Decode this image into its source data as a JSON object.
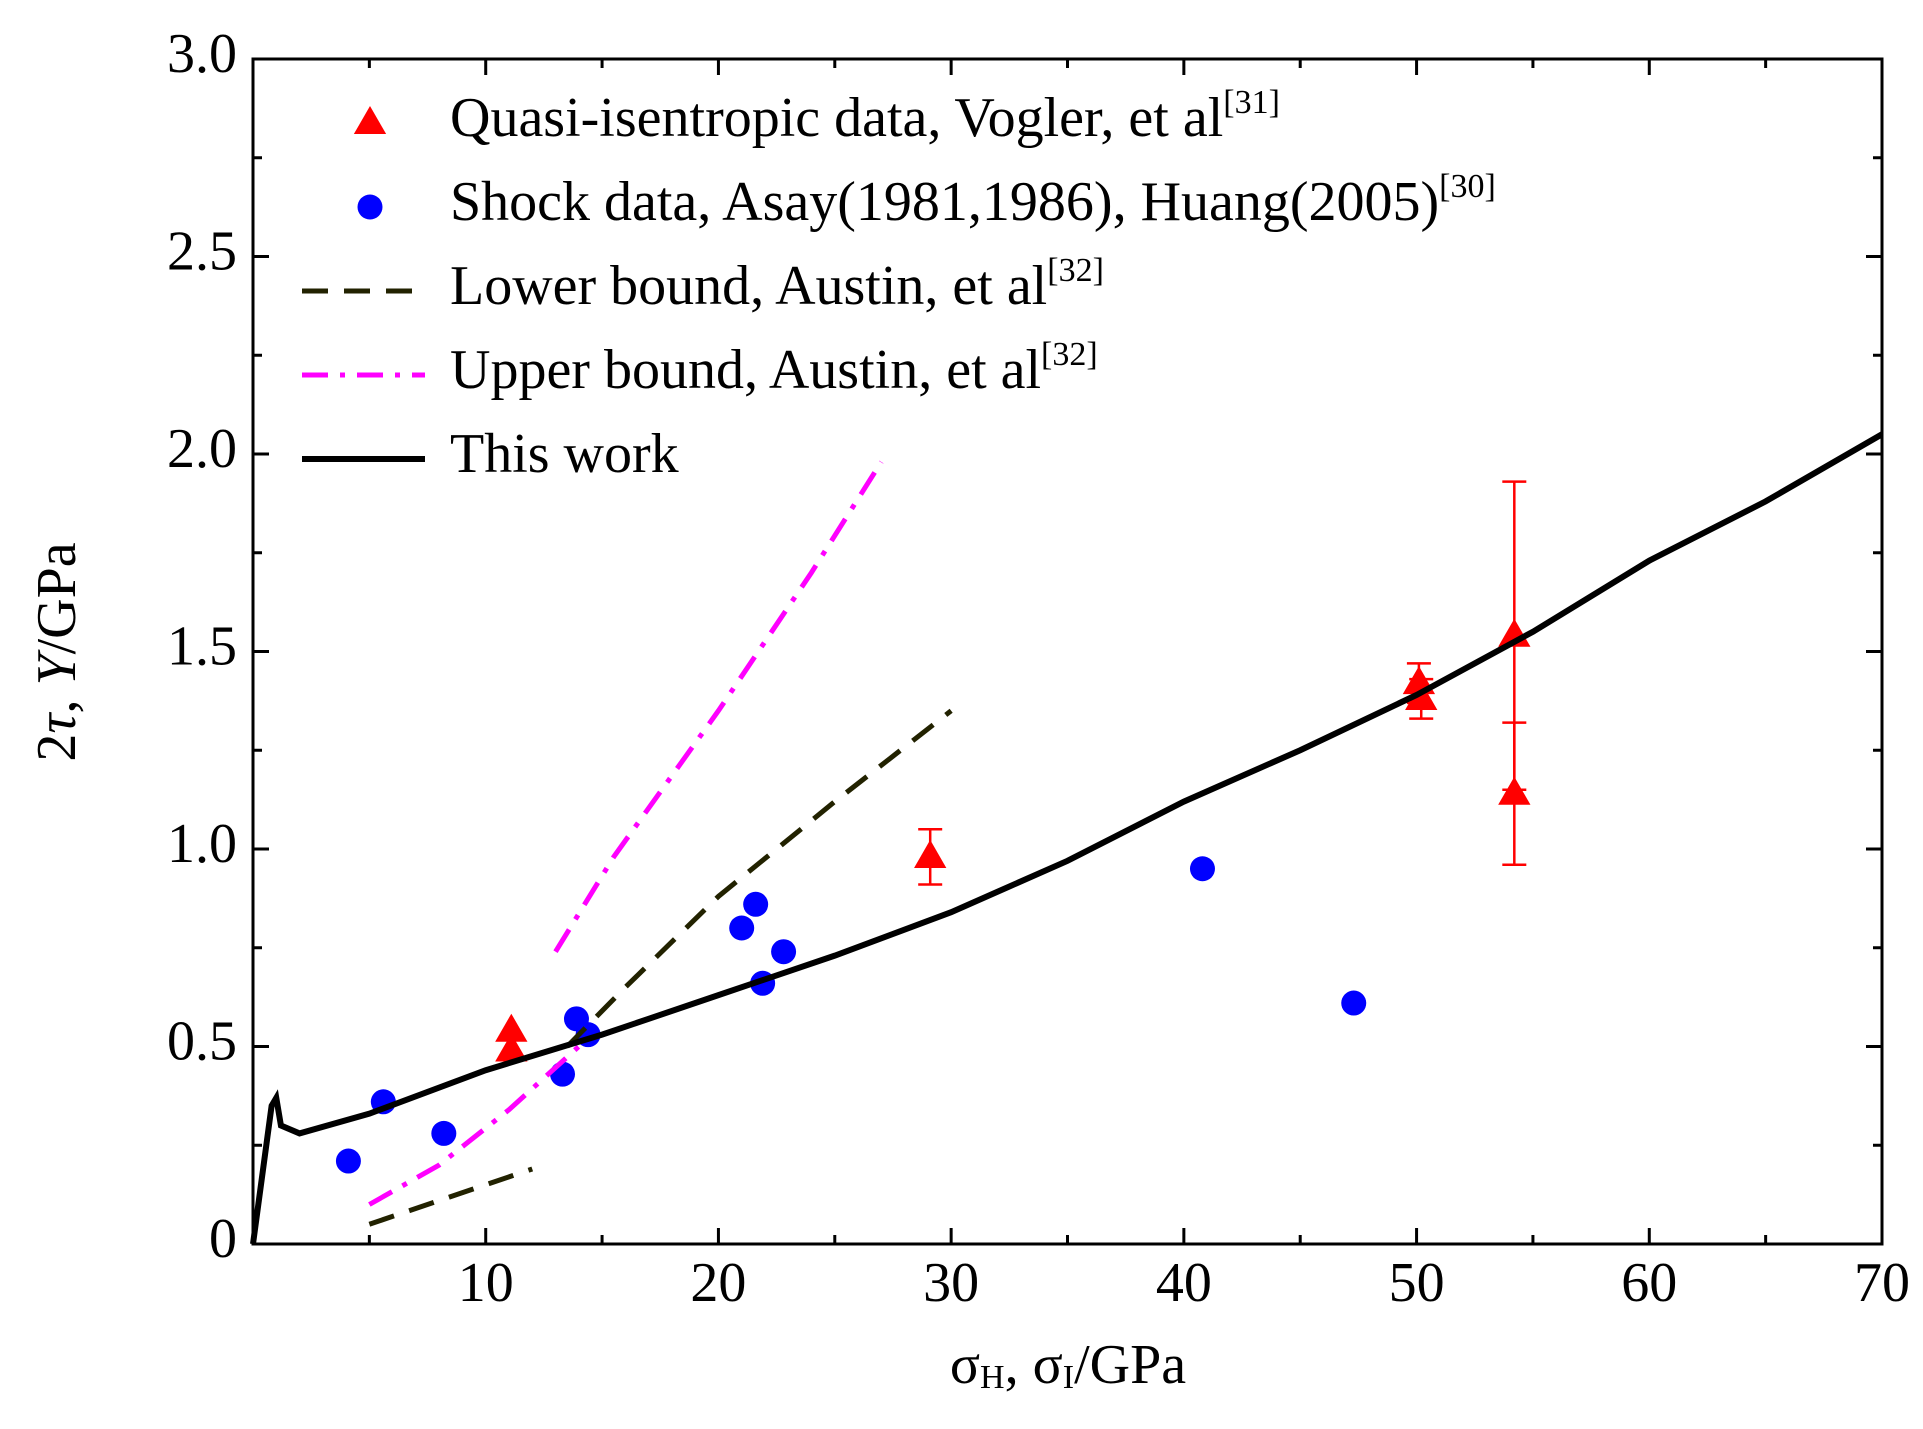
{
  "chart_data": {
    "type": "scatter",
    "ylabel_parts": [
      "2",
      "τ",
      ", ",
      "Y",
      "/GPa"
    ],
    "xlabel_parts": [
      "σ",
      "H",
      ", σ",
      "I",
      "/GPa"
    ],
    "xlim": [
      0,
      70
    ],
    "ylim": [
      0,
      3.0
    ],
    "xticks": [
      10,
      20,
      30,
      40,
      50,
      60,
      70
    ],
    "xminorticks": [
      5,
      15,
      25,
      35,
      45,
      55,
      65
    ],
    "yticks": [
      0,
      0.5,
      {
        "value": 1.0,
        "label": "1.0"
      },
      1.5,
      {
        "value": 2.0,
        "label": "2.0"
      },
      2.5,
      {
        "value": 3.0,
        "label": "3.0"
      }
    ],
    "yminorticks": [
      0.25,
      0.75,
      1.25,
      1.75,
      2.25,
      2.75
    ],
    "series": [
      {
        "name": "Quasi-isentropic data, Vogler, et al",
        "ref": "[31]",
        "color": "#ff0000",
        "marker": "triangle",
        "x": [
          11.1,
          11.1,
          29.1,
          50.1,
          50.2,
          54.2,
          54.2
        ],
        "values": [
          0.54,
          0.49,
          0.98,
          1.42,
          1.38,
          1.54,
          1.14
        ],
        "errors": [
          0,
          0,
          0.07,
          0.05,
          0.05,
          0.39,
          0.18
        ]
      },
      {
        "name": "Shock data, Asay(1981,1986),  Huang(2005)",
        "ref": "[30]",
        "color": "#0000ff",
        "marker": "circle",
        "x": [
          4.1,
          5.6,
          8.2,
          13.3,
          13.9,
          14.4,
          21.0,
          21.6,
          21.9,
          22.8,
          40.8,
          47.3
        ],
        "values": [
          0.21,
          0.36,
          0.28,
          0.43,
          0.57,
          0.53,
          0.8,
          0.86,
          0.66,
          0.74,
          0.95,
          0.61
        ]
      },
      {
        "name": "Lower bound, Austin, et al",
        "ref": "[32]",
        "color": "#222200",
        "line": "dash",
        "x": [
          5,
          8,
          12,
          null,
          13.5,
          16,
          20,
          25,
          30
        ],
        "values": [
          0.05,
          0.11,
          0.19,
          null,
          0.5,
          0.65,
          0.88,
          1.12,
          1.35
        ]
      },
      {
        "name": "Upper bound, Austin, et al",
        "ref": "[32]",
        "color": "#ff00ff",
        "line": "dashdot",
        "x": [
          5,
          8,
          11,
          14,
          null,
          13,
          15.5,
          20,
          24,
          27
        ],
        "values": [
          0.1,
          0.2,
          0.34,
          0.5,
          null,
          0.74,
          0.98,
          1.35,
          1.7,
          1.98
        ]
      },
      {
        "name": "This work",
        "color": "#000000",
        "line": "solid",
        "x": [
          0,
          0.8,
          1.0,
          1.2,
          2,
          5,
          10,
          15,
          20,
          25,
          30,
          35,
          40,
          45,
          50,
          55,
          60,
          65,
          70
        ],
        "values": [
          0,
          0.35,
          0.37,
          0.3,
          0.28,
          0.33,
          0.44,
          0.53,
          0.63,
          0.73,
          0.84,
          0.97,
          1.12,
          1.25,
          1.39,
          1.55,
          1.73,
          1.88,
          2.05
        ]
      }
    ]
  }
}
